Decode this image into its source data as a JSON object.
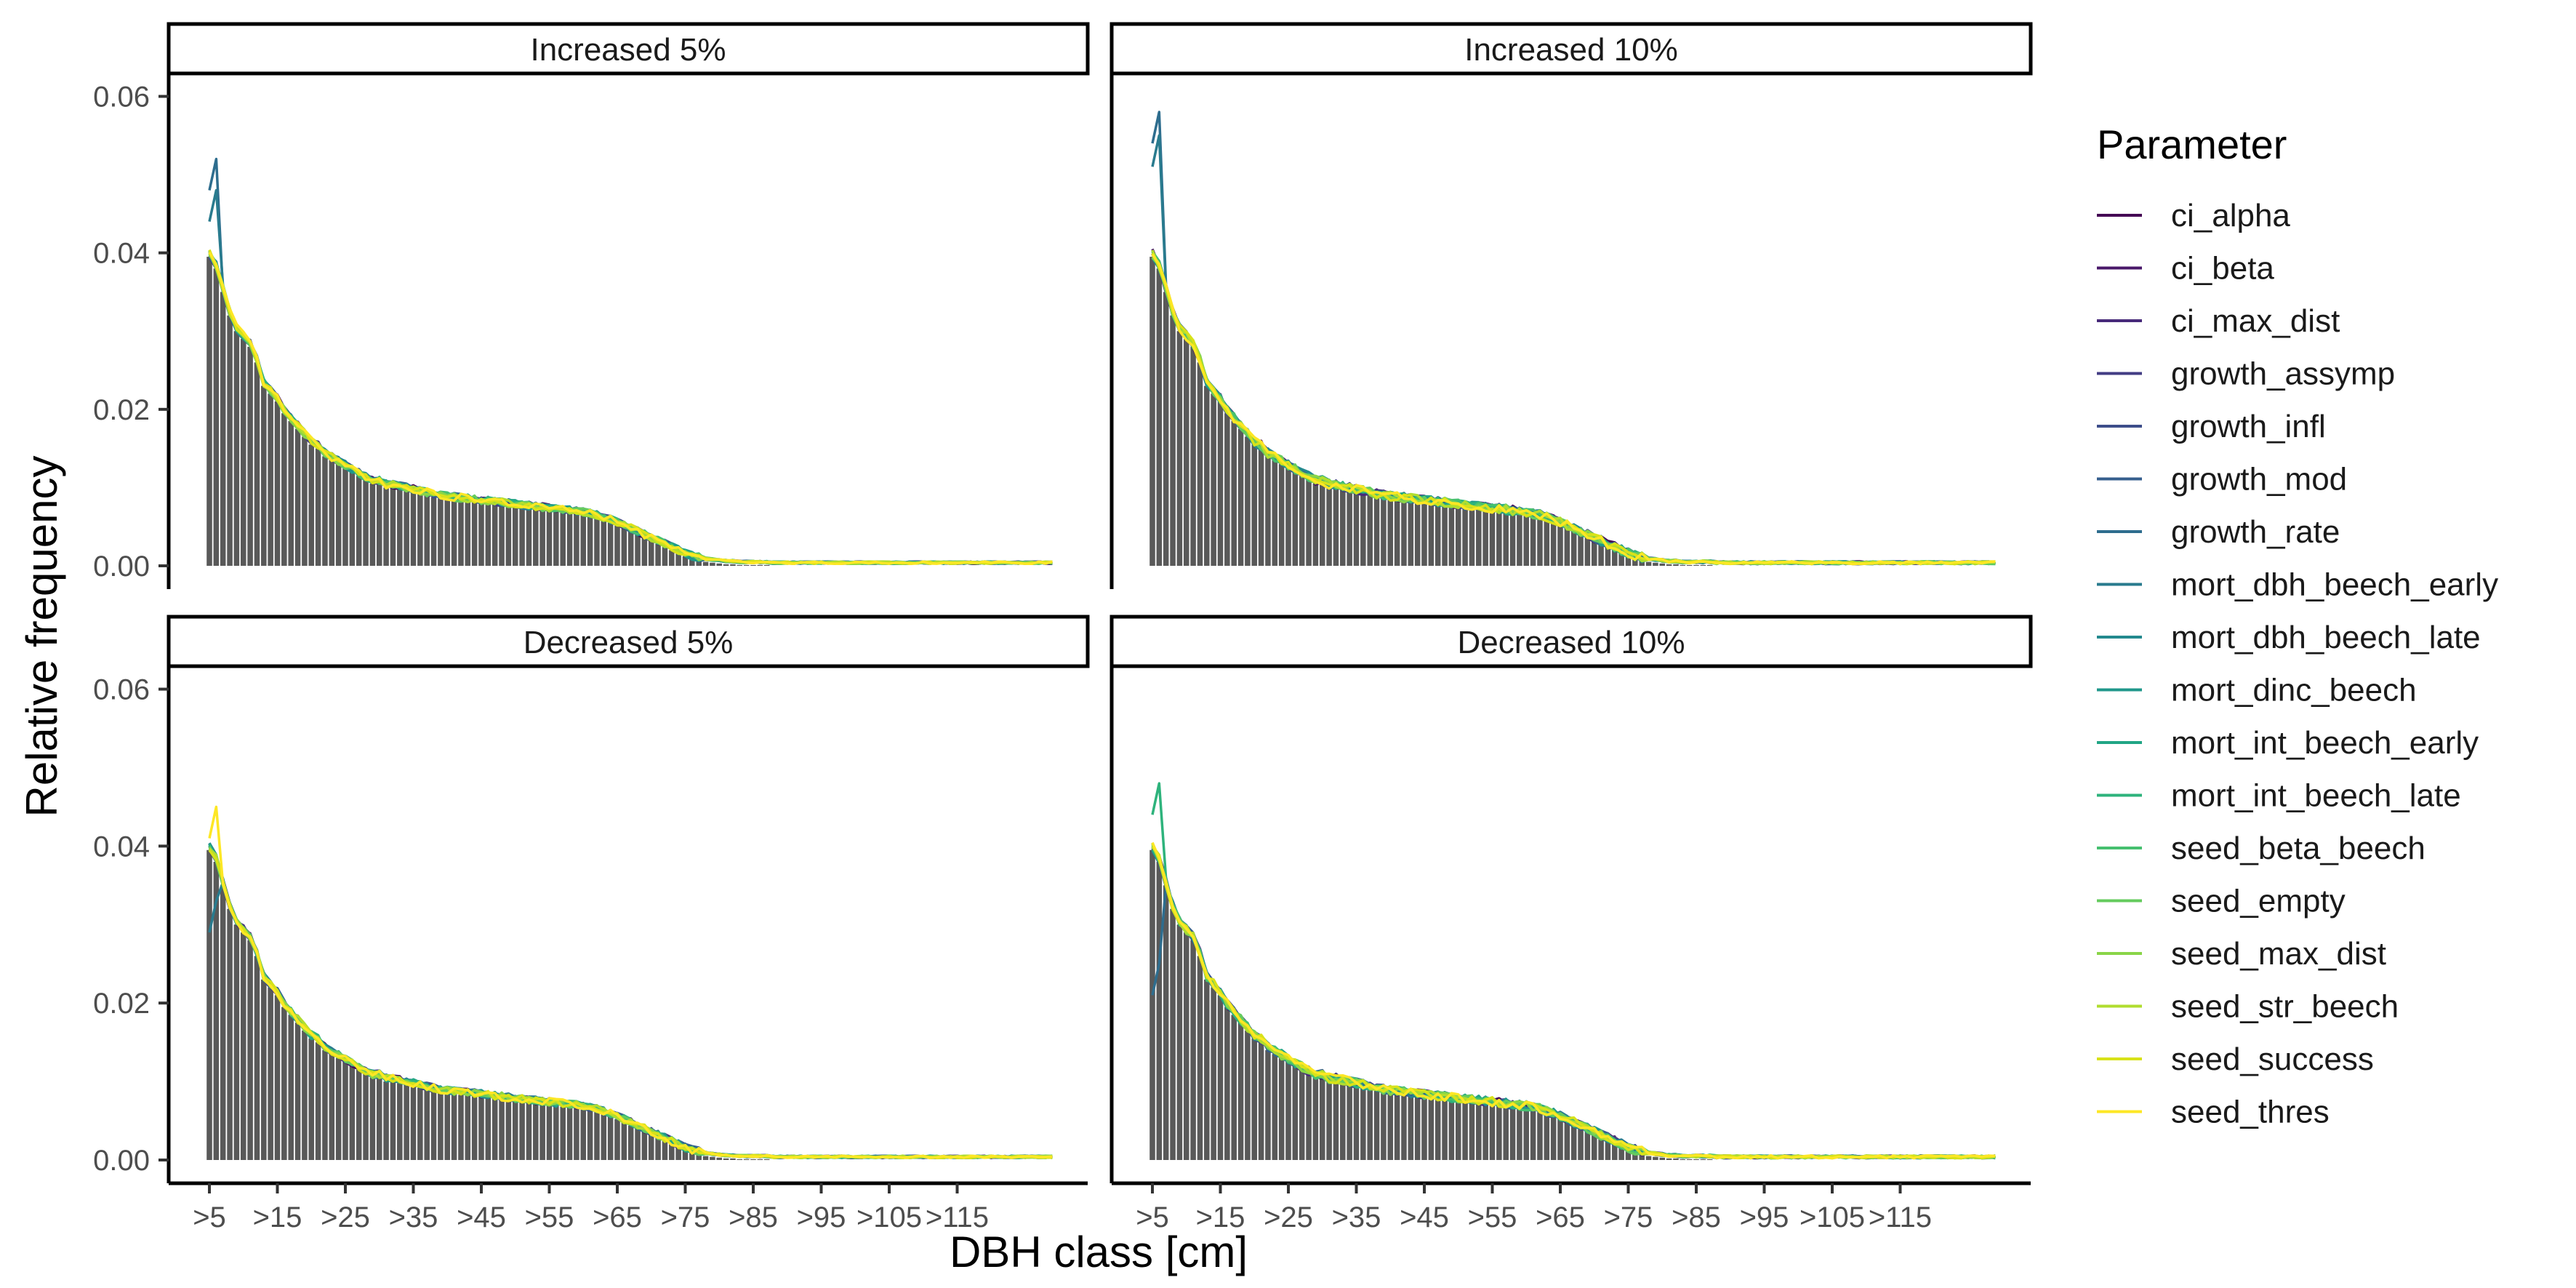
{
  "chart_data": {
    "type": "bar",
    "xlabel": "DBH class [cm]",
    "ylabel": "Relative frequency",
    "ylim": [
      0,
      0.062
    ],
    "y_ticks": [
      "0.00",
      "0.02",
      "0.04",
      "0.06"
    ],
    "x_tick_labels": [
      ">5",
      ">15",
      ">25",
      ">35",
      ">45",
      ">55",
      ">65",
      ">75",
      ">85",
      ">95",
      ">105",
      ">115"
    ],
    "legend": {
      "title": "Parameter",
      "placement": "right",
      "entries": [
        {
          "name": "ci_alpha",
          "color": "#440154"
        },
        {
          "name": "ci_beta",
          "color": "#481769"
        },
        {
          "name": "ci_max_dist",
          "color": "#472a7a"
        },
        {
          "name": "growth_assymp",
          "color": "#433d84"
        },
        {
          "name": "growth_infl",
          "color": "#3d4e8a"
        },
        {
          "name": "growth_mod",
          "color": "#355e8d"
        },
        {
          "name": "growth_rate",
          "color": "#2e6d8e"
        },
        {
          "name": "mort_dbh_beech_early",
          "color": "#297b8e"
        },
        {
          "name": "mort_dbh_beech_late",
          "color": "#23898e"
        },
        {
          "name": "mort_dinc_beech",
          "color": "#1f978b"
        },
        {
          "name": "mort_int_beech_early",
          "color": "#21a585"
        },
        {
          "name": "mort_int_beech_late",
          "color": "#2eb37c"
        },
        {
          "name": "seed_beta_beech",
          "color": "#46c06f"
        },
        {
          "name": "seed_empty",
          "color": "#65cb5e"
        },
        {
          "name": "seed_max_dist",
          "color": "#89d548"
        },
        {
          "name": "seed_str_beech",
          "color": "#b0dd2f"
        },
        {
          "name": "seed_success",
          "color": "#d8e219"
        },
        {
          "name": "seed_thres",
          "color": "#fde725"
        }
      ]
    },
    "bar_color": "#595959",
    "baseline_bars": {
      "note_x": "DBH classes from >5 to >129 in 1 cm steps",
      "values": [
        0.0395,
        0.038,
        0.035,
        0.032,
        0.03,
        0.029,
        0.028,
        0.026,
        0.023,
        0.022,
        0.021,
        0.0195,
        0.0185,
        0.0175,
        0.0165,
        0.0155,
        0.015,
        0.014,
        0.0135,
        0.013,
        0.0125,
        0.012,
        0.0115,
        0.011,
        0.0105,
        0.0105,
        0.01,
        0.01,
        0.0098,
        0.0096,
        0.0094,
        0.0092,
        0.009,
        0.0088,
        0.0086,
        0.0085,
        0.0084,
        0.0083,
        0.0082,
        0.0081,
        0.008,
        0.0079,
        0.0078,
        0.0077,
        0.0076,
        0.0075,
        0.0074,
        0.0073,
        0.0072,
        0.0071,
        0.007,
        0.0069,
        0.0068,
        0.0067,
        0.0066,
        0.0065,
        0.0063,
        0.0061,
        0.0058,
        0.0055,
        0.0052,
        0.0048,
        0.0044,
        0.004,
        0.0036,
        0.0032,
        0.0028,
        0.0024,
        0.002,
        0.0016,
        0.0012,
        0.0009,
        0.0007,
        0.0005,
        0.0004,
        0.0003,
        0.0002,
        0.0002,
        0.0001,
        0.0001,
        0.0001,
        0.0001,
        0.0001,
        0.0,
        0.0,
        0.0,
        0.0,
        0.0,
        0.0,
        0.0,
        0.0,
        0.0,
        0.0,
        0.0,
        0.0,
        0.0,
        0.0,
        0.0,
        0.0,
        0.0,
        0.0,
        0.0,
        0.0,
        0.0,
        0.0,
        0.0,
        0.0,
        0.0,
        0.0,
        0.0,
        0.0,
        0.0,
        0.0,
        0.0,
        0.0,
        0.0,
        0.0,
        0.0,
        0.0,
        0.0,
        0.0,
        0.0,
        0.0,
        0.0,
        0.0
      ]
    },
    "panels": [
      {
        "title": "Increased 5%",
        "first_class_peak": {
          "growth_rate": 0.052,
          "mort_dbh_beech_early": 0.048
        },
        "spread": 0.001
      },
      {
        "title": "Increased 10%",
        "first_class_peak": {
          "growth_rate": 0.058,
          "mort_dbh_beech_early": 0.055
        },
        "spread": 0.0012
      },
      {
        "title": "Decreased 5%",
        "first_class_peak": {
          "seed_thres": 0.045,
          "mort_dbh_beech_early": 0.033
        },
        "spread": 0.001
      },
      {
        "title": "Decreased 10%",
        "first_class_peak": {
          "mort_int_beech_late": 0.048,
          "growth_rate": 0.025
        },
        "spread": 0.0012
      }
    ]
  }
}
